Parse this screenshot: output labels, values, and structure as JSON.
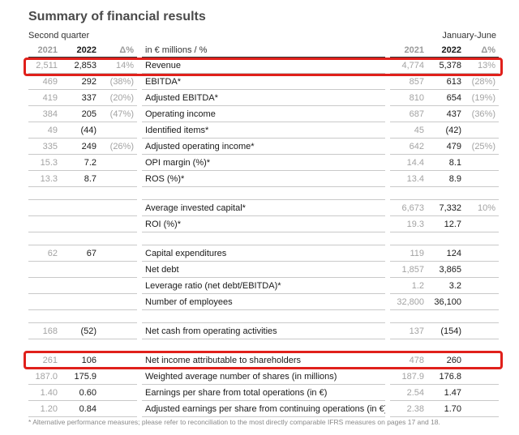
{
  "title": "Summary of financial results",
  "period_left": "Second quarter",
  "period_right": "January-June",
  "headers": {
    "y2021": "2021",
    "y2022": "2022",
    "delta": "Δ%",
    "label": "in € millions / %"
  },
  "rows": [
    {
      "q2021": "2,511",
      "q2022": "2,853",
      "qd": "14%",
      "label": "Revenue",
      "h2021": "4,774",
      "h2022": "5,378",
      "hd": "13%"
    },
    {
      "q2021": "469",
      "q2022": "292",
      "qd": "(38%)",
      "label": "EBITDA*",
      "h2021": "857",
      "h2022": "613",
      "hd": "(28%)"
    },
    {
      "q2021": "419",
      "q2022": "337",
      "qd": "(20%)",
      "label": "Adjusted EBITDA*",
      "h2021": "810",
      "h2022": "654",
      "hd": "(19%)"
    },
    {
      "q2021": "384",
      "q2022": "205",
      "qd": "(47%)",
      "label": "Operating income",
      "h2021": "687",
      "h2022": "437",
      "hd": "(36%)"
    },
    {
      "q2021": "49",
      "q2022": "(44)",
      "qd": "",
      "label": "Identified items*",
      "h2021": "45",
      "h2022": "(42)",
      "hd": ""
    },
    {
      "q2021": "335",
      "q2022": "249",
      "qd": "(26%)",
      "label": "Adjusted operating income*",
      "h2021": "642",
      "h2022": "479",
      "hd": "(25%)"
    },
    {
      "q2021": "15.3",
      "q2022": "7.2",
      "qd": "",
      "label": "OPI margin (%)*",
      "h2021": "14.4",
      "h2022": "8.1",
      "hd": ""
    },
    {
      "q2021": "13.3",
      "q2022": "8.7",
      "qd": "",
      "label": "ROS (%)*",
      "h2021": "13.4",
      "h2022": "8.9",
      "hd": ""
    },
    {
      "blank": true
    },
    {
      "q2021": "",
      "q2022": "",
      "qd": "",
      "label": "Average invested capital*",
      "h2021": "6,673",
      "h2022": "7,332",
      "hd": "10%"
    },
    {
      "q2021": "",
      "q2022": "",
      "qd": "",
      "label": "ROI (%)*",
      "h2021": "19.3",
      "h2022": "12.7",
      "hd": ""
    },
    {
      "blank": true
    },
    {
      "q2021": "62",
      "q2022": "67",
      "qd": "",
      "label": "Capital expenditures",
      "h2021": "119",
      "h2022": "124",
      "hd": ""
    },
    {
      "q2021": "",
      "q2022": "",
      "qd": "",
      "label": "Net debt",
      "h2021": "1,857",
      "h2022": "3,865",
      "hd": ""
    },
    {
      "q2021": "",
      "q2022": "",
      "qd": "",
      "label": "Leverage ratio (net debt/EBITDA)*",
      "h2021": "1.2",
      "h2022": "3.2",
      "hd": ""
    },
    {
      "q2021": "",
      "q2022": "",
      "qd": "",
      "label": "Number of employees",
      "h2021": "32,800",
      "h2022": "36,100",
      "hd": ""
    },
    {
      "blank": true
    },
    {
      "q2021": "168",
      "q2022": "(52)",
      "qd": "",
      "label": "Net cash from operating activities",
      "h2021": "137",
      "h2022": "(154)",
      "hd": ""
    },
    {
      "blank": true
    },
    {
      "q2021": "261",
      "q2022": "106",
      "qd": "",
      "label": "Net income attributable to shareholders",
      "h2021": "478",
      "h2022": "260",
      "hd": ""
    },
    {
      "q2021": "187.0",
      "q2022": "175.9",
      "qd": "",
      "label": "Weighted average number of shares (in millions)",
      "h2021": "187.9",
      "h2022": "176.8",
      "hd": ""
    },
    {
      "q2021": "1.40",
      "q2022": "0.60",
      "qd": "",
      "label": "Earnings per share from total operations (in €)",
      "h2021": "2.54",
      "h2022": "1.47",
      "hd": ""
    },
    {
      "q2021": "1.20",
      "q2022": "0.84",
      "qd": "",
      "label": "Adjusted earnings per share from continuing operations (in €)*",
      "h2021": "2.38",
      "h2022": "1.70",
      "hd": ""
    }
  ],
  "footnote": "* Alternative performance measures; please refer to reconciliation to the most directly comparable IFRS measures on pages 17 and 18.",
  "highlight_color": "#e0201b"
}
